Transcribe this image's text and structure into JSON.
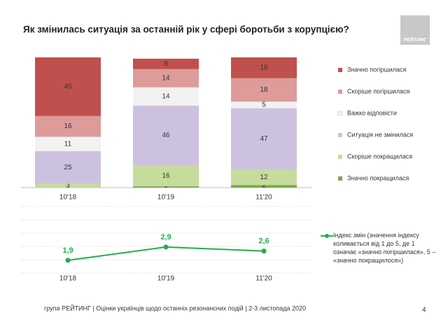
{
  "header": {
    "title": "Як змінилась ситуація за останній рік у сфері боротьби з корупцією?",
    "logo": "РЕЙТИНГ"
  },
  "chart_data": [
    {
      "type": "stacked-bar",
      "categories": [
        "10'18",
        "10'19",
        "11'20"
      ],
      "ylim": [
        0,
        100
      ],
      "series": [
        {
          "name": "Значно покращилася",
          "color": "#7aa84a",
          "values": [
            0,
            1,
            2
          ]
        },
        {
          "name": "Скоріше покращилася",
          "color": "#c6dc9c",
          "values": [
            3,
            16,
            12
          ]
        },
        {
          "name": "Ситуація не змінилася",
          "color": "#ccc2e0",
          "values": [
            25,
            46,
            47
          ]
        },
        {
          "name": "Важко відповісти",
          "color": "#f2f2f2",
          "values": [
            11,
            14,
            5
          ]
        },
        {
          "name": "Скоріше погіршилася",
          "color": "#dd9b99",
          "values": [
            16,
            14,
            18
          ]
        },
        {
          "name": "Значно погіршилася",
          "color": "#c0504d",
          "values": [
            45,
            8,
            16
          ]
        }
      ]
    },
    {
      "type": "line",
      "categories": [
        "10'18",
        "10'19",
        "11'20"
      ],
      "ylim": [
        1,
        5
      ],
      "series": [
        {
          "name": "Індекс змін (значення індексу коливається від 1 до 5, де 1 означає «значно погіршилася», 5 – «значно покращилося»)",
          "color": "#22b04b",
          "values": [
            1.9,
            2.9,
            2.6
          ],
          "value_labels": [
            "1,9",
            "2,9",
            "2,6"
          ]
        }
      ]
    }
  ],
  "footer": {
    "text": "група РЕЙТИНГ | Оцінки українців щодо останніх резонансних подій | 2-3 листопада 2020",
    "page": "4"
  }
}
